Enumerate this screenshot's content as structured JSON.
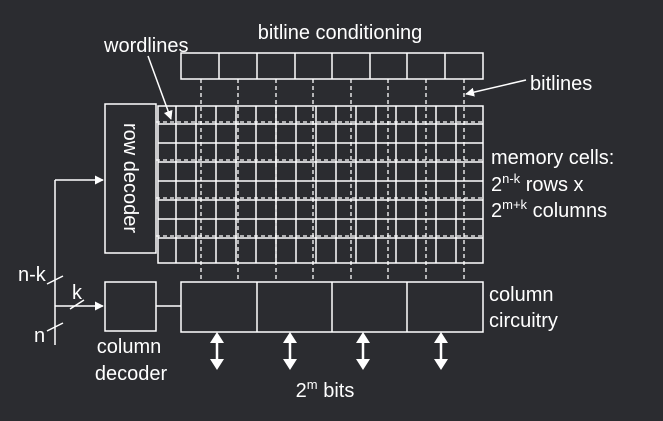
{
  "colors": {
    "background": "#2b2c30",
    "foreground": "#ffffff",
    "block_fill": "#2b2c30"
  },
  "labels": {
    "bitline_conditioning": "bitline conditioning",
    "wordlines": "wordlines",
    "bitlines": "bitlines",
    "row_decoder": "row decoder",
    "memory_cells_title": "memory cells:",
    "rows_base": "2",
    "rows_exp": "n-k",
    "rows_suffix": " rows x",
    "cols_base": "2",
    "cols_exp": "m+k",
    "cols_suffix": " columns",
    "column_circuitry_line1": "column",
    "column_circuitry_line2": "circuitry",
    "column_decoder_line1": "column",
    "column_decoder_line2": "decoder",
    "bits_base": "2",
    "bits_exp": "m",
    "bits_suffix": " bits",
    "n_minus_k": "n-k",
    "k": "k",
    "n": "n"
  },
  "icons": {
    "bidirectional_arrow": "double-headed-vertical-arrow",
    "input_arrow": "right-arrow"
  }
}
